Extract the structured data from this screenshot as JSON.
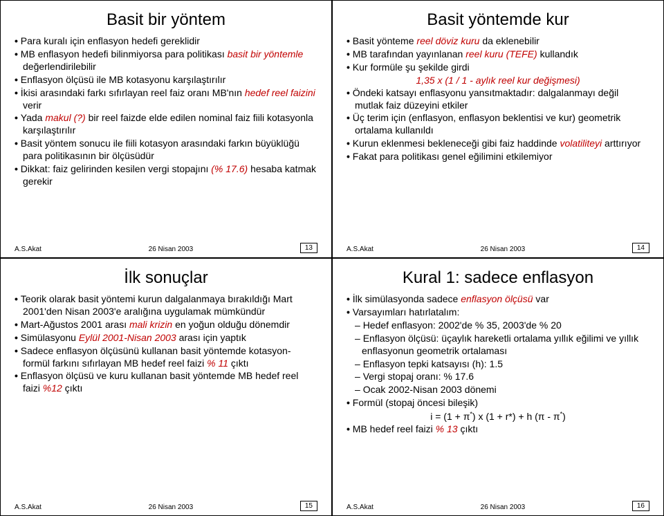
{
  "accent_color": "#c00000",
  "slides": [
    {
      "title": "Basit bir yöntem",
      "footer_author": "A.S.Akat",
      "footer_date": "26 Nisan 2003",
      "page": "13",
      "items": [
        {
          "t": "bullet",
          "runs": [
            [
              "Para kuralı için enflasyon hedefi gereklidir",
              false
            ]
          ]
        },
        {
          "t": "bullet",
          "runs": [
            [
              "MB enflasyon hedefi bilinmiyorsa para politikası ",
              false
            ],
            [
              "basit bir yöntemle",
              true
            ],
            [
              " değerlendirilebilir",
              false
            ]
          ]
        },
        {
          "t": "bullet",
          "runs": [
            [
              "Enflasyon ölçüsü ile MB kotasyonu karşılaştırılır",
              false
            ]
          ]
        },
        {
          "t": "bullet",
          "runs": [
            [
              "İkisi arasındaki farkı sıfırlayan reel faiz oranı MB'nın ",
              false
            ],
            [
              "hedef reel faizini",
              true
            ],
            [
              " verir",
              false
            ]
          ]
        },
        {
          "t": "bullet",
          "runs": [
            [
              "Yada ",
              false
            ],
            [
              "makul (?)",
              true
            ],
            [
              " bir reel faizde elde edilen nominal faiz fiili kotasyonla karşılaştırılır",
              false
            ]
          ]
        },
        {
          "t": "bullet",
          "runs": [
            [
              "Basit yöntem sonucu ile fiili kotasyon arasındaki farkın büyüklüğü para politikasının bir ölçüsüdür",
              false
            ]
          ]
        },
        {
          "t": "bullet",
          "runs": [
            [
              "Dikkat: faiz gelirinden kesilen vergi stopajını ",
              false
            ],
            [
              "(% 17.6)",
              true
            ],
            [
              " hesaba katmak gerekir",
              false
            ]
          ]
        }
      ]
    },
    {
      "title": "Basit yöntemde kur",
      "footer_author": "A.S.Akat",
      "footer_date": "26 Nisan 2003",
      "page": "14",
      "items": [
        {
          "t": "bullet",
          "runs": [
            [
              "Basit yönteme ",
              false
            ],
            [
              "reel döviz kuru",
              true
            ],
            [
              " da eklenebilir",
              false
            ]
          ]
        },
        {
          "t": "bullet",
          "runs": [
            [
              "MB tarafından yayınlanan ",
              false
            ],
            [
              "reel kuru (TEFE)",
              true
            ],
            [
              " kullandık",
              false
            ]
          ]
        },
        {
          "t": "bullet",
          "runs": [
            [
              "Kur formüle şu şekilde girdi",
              false
            ]
          ]
        },
        {
          "t": "formula",
          "runs": [
            [
              "1,35 x  (1 / 1 - aylık reel kur değişmesi)",
              true
            ]
          ]
        },
        {
          "t": "bullet",
          "runs": [
            [
              "Öndeki katsayı enflasyonu yansıtmaktadır: dalgalanmayı değil mutlak faiz düzeyini etkiler",
              false
            ]
          ]
        },
        {
          "t": "bullet",
          "runs": [
            [
              "Üç terim için (enflasyon, enflasyon beklentisi ve kur) geometrik ortalama kullanıldı",
              false
            ]
          ]
        },
        {
          "t": "bullet",
          "runs": [
            [
              "Kurun eklenmesi bekleneceği gibi faiz haddinde ",
              false
            ],
            [
              "volatiliteyi",
              true
            ],
            [
              " arttırıyor",
              false
            ]
          ]
        },
        {
          "t": "bullet",
          "runs": [
            [
              "Fakat para politikası genel eğilimini etkilemiyor",
              false
            ]
          ]
        }
      ]
    },
    {
      "title": "İlk sonuçlar",
      "footer_author": "A.S.Akat",
      "footer_date": "26 Nisan 2003",
      "page": "15",
      "items": [
        {
          "t": "bullet",
          "runs": [
            [
              "Teorik olarak basit yöntemi kurun dalgalanmaya bırakıldığı Mart 2001'den Nisan 2003'e aralığına uygulamak mümkündür",
              false
            ]
          ]
        },
        {
          "t": "bullet",
          "runs": [
            [
              "Mart-Ağustos 2001 arası ",
              false
            ],
            [
              "mali krizin",
              true
            ],
            [
              " en yoğun olduğu dönemdir",
              false
            ]
          ]
        },
        {
          "t": "bullet",
          "runs": [
            [
              "Simülasyonu ",
              false
            ],
            [
              "Eylül 2001-Nisan 2003",
              true
            ],
            [
              " arası için yaptık",
              false
            ]
          ]
        },
        {
          "t": "bullet",
          "runs": [
            [
              "Sadece enflasyon ölçüsünü kullanan basit yöntemde kotasyon-formül farkını sıfırlayan MB hedef reel faizi ",
              false
            ],
            [
              "% 11",
              true
            ],
            [
              " çıktı",
              false
            ]
          ]
        },
        {
          "t": "bullet",
          "runs": [
            [
              "Enflasyon ölçüsü ve kuru kullanan basit yöntemde MB hedef reel faizi ",
              false
            ],
            [
              "%12",
              true
            ],
            [
              " çıktı",
              false
            ]
          ]
        }
      ]
    },
    {
      "title": "Kural 1: sadece enflasyon",
      "footer_author": "A.S.Akat",
      "footer_date": "26 Nisan 2003",
      "page": "16",
      "items": [
        {
          "t": "bullet",
          "runs": [
            [
              "İlk simülasyonda sadece ",
              false
            ],
            [
              "enflasyon ölçüsü",
              true
            ],
            [
              " var",
              false
            ]
          ]
        },
        {
          "t": "bullet",
          "runs": [
            [
              "Varsayımları hatırlatalım:",
              false
            ]
          ]
        },
        {
          "t": "dash",
          "runs": [
            [
              "Hedef enflasyon: 2002'de % 35, 2003'de % 20",
              false
            ]
          ]
        },
        {
          "t": "dash",
          "runs": [
            [
              "Enflasyon ölçüsü: üçaylık hareketli ortalama yıllık eğilimi ve yıllık enflasyonun geometrik ortalaması",
              false
            ]
          ]
        },
        {
          "t": "dash",
          "runs": [
            [
              "Enflasyon tepki katsayısı (h): 1.5",
              false
            ]
          ]
        },
        {
          "t": "dash",
          "runs": [
            [
              "Vergi stopaj oranı: % 17.6",
              false
            ]
          ]
        },
        {
          "t": "dash",
          "runs": [
            [
              "Ocak 2002-Nisan 2003 dönemi",
              false
            ]
          ]
        },
        {
          "t": "bullet",
          "runs": [
            [
              "Formül (stopaj öncesi bileşik)",
              false
            ]
          ]
        },
        {
          "t": "formula",
          "runs": [
            [
              "i = (1 + π*) x (1 + r*) + h (π - π*)",
              false
            ]
          ]
        },
        {
          "t": "bullet",
          "runs": [
            [
              "MB hedef reel faizi ",
              false
            ],
            [
              "% 13",
              true
            ],
            [
              " çıktı",
              false
            ]
          ]
        }
      ]
    }
  ]
}
